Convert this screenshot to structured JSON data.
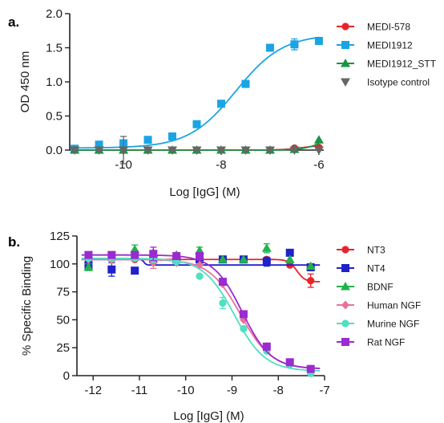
{
  "chart_data": [
    {
      "type": "scatter",
      "panel_label": "a.",
      "xlabel": "Log [IgG] (M)",
      "ylabel": "OD 450 nm",
      "xlim": [
        -11.1,
        -5.9
      ],
      "ylim": [
        0,
        2.0
      ],
      "xticks": [
        -10,
        -8,
        -6
      ],
      "xtick_labels": [
        "-10",
        "-8",
        "-6"
      ],
      "yticks": [
        0,
        0.5,
        1.0,
        1.5,
        2.0
      ],
      "ytick_labels": [
        "0.0",
        "0.5",
        "1.0",
        "1.5",
        "2.0"
      ],
      "legend_position": "right",
      "series": [
        {
          "name": "MEDI-578",
          "marker": "circle",
          "color": "#e8232a",
          "x": [
            -11,
            -10.5,
            -10,
            -9.5,
            -9,
            -8.5,
            -8,
            -7.5,
            -7,
            -6.5,
            -6
          ],
          "y": [
            0.0,
            0.0,
            0.0,
            0.0,
            0.0,
            0.0,
            0.0,
            0.0,
            0.0,
            0.03,
            0.04
          ],
          "fit": {
            "bottom": 0.0,
            "top": 0.08,
            "logec50": -6.3,
            "hill": 2
          }
        },
        {
          "name": "MEDI1912",
          "marker": "square",
          "color": "#1ba4e4",
          "x": [
            -11,
            -10.5,
            -10,
            -9.5,
            -9,
            -8.5,
            -8,
            -7.5,
            -7,
            -6.5,
            -6
          ],
          "y": [
            0.02,
            0.08,
            0.1,
            0.15,
            0.2,
            0.38,
            0.68,
            0.97,
            1.5,
            1.55,
            1.6
          ],
          "yerr": [
            0,
            0,
            0,
            0,
            0,
            0,
            0,
            0,
            0,
            0.08,
            0
          ],
          "fit": {
            "bottom": 0.03,
            "top": 1.7,
            "logec50": -7.7,
            "hill": 0.9
          }
        },
        {
          "name": "MEDI1912_STT",
          "marker": "triangle-up",
          "color": "#1a9446",
          "x": [
            -11,
            -10.5,
            -10,
            -9.5,
            -9,
            -8.5,
            -8,
            -7.5,
            -7,
            -6.5,
            -6
          ],
          "y": [
            0.0,
            0.0,
            0.0,
            0.0,
            0.0,
            0.0,
            0.0,
            0.0,
            0.0,
            0.01,
            0.15
          ],
          "fit": {
            "bottom": 0.0,
            "top": 0.5,
            "logec50": -5.7,
            "hill": 2
          }
        },
        {
          "name": "Isotype control",
          "marker": "triangle-down",
          "color": "#666666",
          "x": [
            -11,
            -10.5,
            -10,
            -9.5,
            -9,
            -8.5,
            -8,
            -7.5,
            -7,
            -6.5,
            -6
          ],
          "y": [
            0.0,
            0.0,
            0.0,
            0.0,
            0.0,
            0.0,
            0.0,
            0.0,
            0.0,
            0.0,
            0.0
          ],
          "yerr": [
            0,
            0,
            0.2,
            0,
            0,
            0,
            0,
            0,
            0,
            0,
            0
          ],
          "fit": null
        }
      ]
    },
    {
      "type": "scatter",
      "panel_label": "b.",
      "xlabel": "Log [IgG] (M)",
      "ylabel": "% Specific Binding",
      "xlim": [
        -12.35,
        -7
      ],
      "ylim": [
        0,
        125
      ],
      "xticks": [
        -12,
        -11,
        -10,
        -9,
        -8,
        -7
      ],
      "xtick_labels": [
        "-12",
        "-11",
        "-10",
        "-9",
        "-8",
        "-7"
      ],
      "yticks": [
        0,
        25,
        50,
        75,
        100,
        125
      ],
      "ytick_labels": [
        "0",
        "25",
        "50",
        "75",
        "100",
        "125"
      ],
      "legend_position": "right",
      "series": [
        {
          "name": "NT3",
          "marker": "circle",
          "color": "#e8232a",
          "x": [
            -12.1,
            -11.6,
            -11.1,
            -10.7,
            -10.2,
            -9.7,
            -9.2,
            -8.75,
            -8.25,
            -7.75,
            -7.3
          ],
          "y": [
            104,
            104,
            104,
            104,
            104,
            104,
            104,
            104,
            104,
            99,
            85
          ],
          "yerr": [
            0,
            0,
            0,
            0,
            0,
            0,
            0,
            0,
            0,
            0,
            6
          ],
          "fit": {
            "bottom": 84,
            "top": 104,
            "logec50": -7.6,
            "hill": 5
          }
        },
        {
          "name": "NT4",
          "marker": "square",
          "color": "#1f22c8",
          "x": [
            -12.1,
            -11.6,
            -11.1,
            -10.7,
            -10.2,
            -9.7,
            -9.2,
            -8.75,
            -8.25,
            -7.75,
            -7.3
          ],
          "y": [
            99,
            95,
            94,
            104,
            104,
            104,
            104,
            104,
            102,
            110,
            97
          ],
          "yerr": [
            4,
            6,
            0,
            0,
            0,
            0,
            0,
            0,
            4,
            0,
            0
          ],
          "fit": {
            "bottom": 99,
            "top": 104,
            "logec50": -10.9,
            "hill": 20
          }
        },
        {
          "name": "BDNF",
          "marker": "triangle-up",
          "color": "#22b24c",
          "x": [
            -12.1,
            -11.6,
            -11.1,
            -10.7,
            -10.2,
            -9.7,
            -9.2,
            -8.75,
            -8.25,
            -7.75,
            -7.3
          ],
          "y": [
            97,
            107,
            113,
            110,
            108,
            112,
            104,
            104,
            114,
            104,
            98
          ],
          "yerr": [
            3,
            0,
            4,
            0,
            0,
            3,
            0,
            0,
            4,
            0,
            0
          ],
          "fit": null
        },
        {
          "name": "Human NGF",
          "marker": "diamond",
          "color": "#e8739a",
          "x": [
            -12.1,
            -11.6,
            -11.1,
            -10.7,
            -10.2,
            -9.7,
            -9.2,
            -8.75,
            -8.25,
            -7.75,
            -7.3
          ],
          "y": [
            104,
            103,
            107,
            101,
            101,
            99,
            82,
            50,
            26,
            10,
            6
          ],
          "yerr": [
            0,
            0,
            4,
            5,
            0,
            0,
            0,
            0,
            0,
            0,
            0
          ],
          "fit": {
            "bottom": 6,
            "top": 104,
            "logec50": -8.82,
            "hill": 1.3
          }
        },
        {
          "name": "Murine NGF",
          "marker": "circle",
          "color": "#4fe0c0",
          "x": [
            -12.1,
            -11.6,
            -11.1,
            -10.7,
            -10.2,
            -9.7,
            -9.2,
            -8.75,
            -8.25,
            -7.75,
            -7.3
          ],
          "y": [
            105,
            105,
            105,
            104,
            102,
            89,
            65,
            42,
            22,
            10,
            2
          ],
          "yerr": [
            0,
            0,
            0,
            0,
            0,
            0,
            5,
            0,
            0,
            0,
            0
          ],
          "fit": {
            "bottom": 4,
            "top": 105,
            "logec50": -8.95,
            "hill": 1.3
          }
        },
        {
          "name": "Rat NGF",
          "marker": "square",
          "color": "#9b2ad0",
          "x": [
            -12.1,
            -11.6,
            -11.1,
            -10.7,
            -10.2,
            -9.7,
            -9.2,
            -8.75,
            -8.25,
            -7.75,
            -7.3
          ],
          "y": [
            108,
            108,
            108,
            109,
            107,
            107,
            84,
            55,
            26,
            12,
            6
          ],
          "yerr": [
            0,
            0,
            0,
            6,
            0,
            0,
            0,
            0,
            0,
            0,
            0
          ],
          "fit": {
            "bottom": 6,
            "top": 108,
            "logec50": -8.78,
            "hill": 1.4
          }
        }
      ]
    }
  ]
}
